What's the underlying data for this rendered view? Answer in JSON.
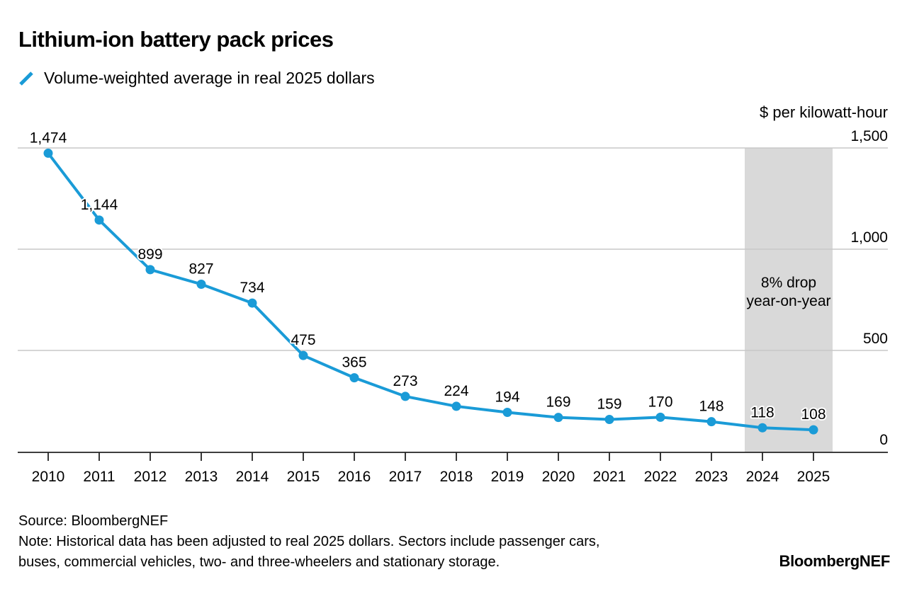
{
  "chart_data": {
    "type": "line",
    "title": "Lithium-ion battery pack prices",
    "series": [
      {
        "name": "Volume-weighted average in real 2025 dollars",
        "color": "#1a9bd7",
        "values": [
          1474,
          1144,
          899,
          827,
          734,
          475,
          365,
          273,
          224,
          194,
          169,
          159,
          170,
          148,
          118,
          108
        ]
      }
    ],
    "categories": [
      "2010",
      "2011",
      "2012",
      "2013",
      "2014",
      "2015",
      "2016",
      "2017",
      "2018",
      "2019",
      "2020",
      "2021",
      "2022",
      "2023",
      "2024",
      "2025"
    ],
    "data_labels": [
      "1,474",
      "1,144",
      "899",
      "827",
      "734",
      "475",
      "365",
      "273",
      "224",
      "194",
      "169",
      "159",
      "170",
      "148",
      "118",
      "108"
    ],
    "ylabel": "$ per kilowatt-hour",
    "ylim": [
      0,
      1500
    ],
    "yticks": [
      0,
      500,
      1000,
      1500
    ],
    "ytick_labels": [
      "0",
      "500",
      "1,000",
      "1,500"
    ],
    "y_axis_side": "right",
    "grid": true,
    "legend_placement": "top-left",
    "highlight": {
      "from": "2024",
      "to": "2025",
      "color": "#d9d9d9",
      "annotation_lines": [
        "8% drop",
        "year-on-year"
      ]
    }
  },
  "footer": {
    "source": "Source: BloombergNEF",
    "note_line1": "Note: Historical data has been adjusted to real 2025 dollars. Sectors include passenger cars,",
    "note_line2": "buses, commercial vehicles, two- and three-wheelers and stationary storage.",
    "brand": "BloombergNEF"
  }
}
